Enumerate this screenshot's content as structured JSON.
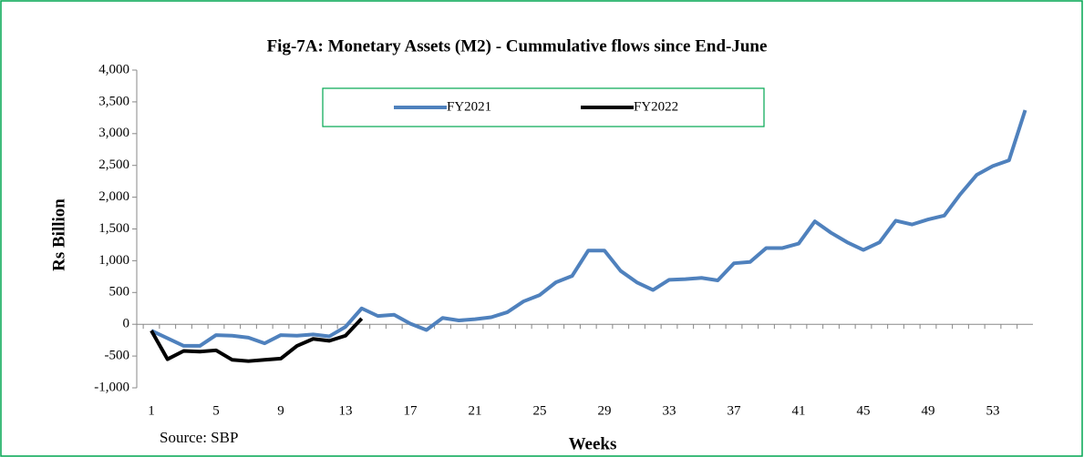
{
  "chart_data": {
    "type": "line",
    "title": "Fig-7A: Monetary Assets (M2) - Cummulative flows since End-June",
    "source": "Source: SBP",
    "x_label": "Weeks",
    "y_label": "Rs Billion",
    "categories": [
      "1",
      null,
      null,
      null,
      "5",
      null,
      null,
      null,
      "9",
      null,
      null,
      null,
      "13",
      null,
      null,
      null,
      "17",
      null,
      null,
      null,
      "21",
      null,
      null,
      null,
      "25",
      null,
      null,
      null,
      "29",
      null,
      null,
      null,
      "33",
      null,
      null,
      null,
      "37",
      null,
      null,
      null,
      "41",
      null,
      null,
      null,
      "45",
      null,
      null,
      null,
      "49",
      null,
      null,
      null,
      "53",
      null,
      null
    ],
    "series": [
      {
        "name": "FY2021",
        "color": "#4f81bd",
        "values": [
          -100,
          -220,
          -340,
          -340,
          -170,
          -180,
          -210,
          -300,
          -170,
          -180,
          -160,
          -190,
          -40,
          250,
          130,
          150,
          10,
          -90,
          100,
          60,
          80,
          110,
          190,
          360,
          460,
          660,
          760,
          1160,
          1160,
          840,
          660,
          540,
          700,
          710,
          730,
          690,
          960,
          980,
          1200,
          1200,
          1270,
          1620,
          1440,
          1290,
          1170,
          1290,
          1630,
          1570,
          1650,
          1710,
          2050,
          2350,
          2490,
          2580,
          3370
        ]
      },
      {
        "name": "FY2022",
        "color": "#000000",
        "values": [
          -100,
          -550,
          -420,
          -430,
          -410,
          -560,
          -580,
          -560,
          -540,
          -340,
          -230,
          -260,
          -180,
          90,
          null,
          null,
          null,
          null,
          null,
          null,
          null,
          null,
          null,
          null,
          null,
          null,
          null,
          null,
          null,
          null,
          null,
          null,
          null,
          null,
          null,
          null,
          null,
          null,
          null,
          null,
          null,
          null,
          null,
          null,
          null,
          null,
          null,
          null,
          null,
          null,
          null,
          null,
          null,
          null,
          null
        ]
      }
    ],
    "ylim": [
      -1000,
      4000
    ],
    "yticks": [
      {
        "value": -1000,
        "label": "-1,000"
      },
      -500,
      0,
      500,
      {
        "value": 1000,
        "label": "1,000"
      },
      {
        "value": 1500,
        "label": "1,500"
      },
      {
        "value": 2000,
        "label": "2,000"
      },
      {
        "value": 2500,
        "label": "2,500"
      },
      {
        "value": 3000,
        "label": "3,000"
      },
      {
        "value": 3500,
        "label": "3,500"
      },
      {
        "value": 4000,
        "label": "4,000"
      }
    ],
    "grid": false,
    "legend": "top"
  }
}
